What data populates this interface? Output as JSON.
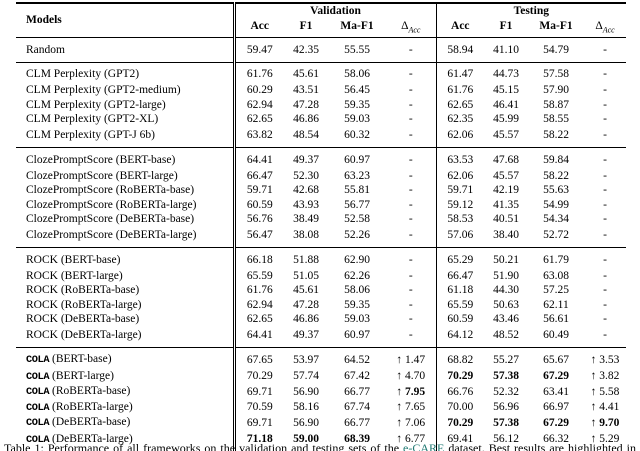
{
  "table": {
    "header": {
      "models_label": "Models",
      "validation_label": "Validation",
      "testing_label": "Testing",
      "subcols": [
        "Acc",
        "F1",
        "Ma-F1"
      ],
      "delta": {
        "sym": "Δ",
        "sub": "Acc"
      }
    },
    "groups": [
      {
        "rows": [
          {
            "tt": "",
            "name": "Random",
            "cells": [
              "59.47",
              "42.35",
              "55.55",
              "-",
              "58.94",
              "41.10",
              "54.79",
              "-"
            ],
            "bold": []
          }
        ]
      },
      {
        "rows": [
          {
            "tt": "",
            "name": "CLM Perplexity (GPT2)",
            "cells": [
              "61.76",
              "45.61",
              "58.06",
              "-",
              "61.47",
              "44.73",
              "57.58",
              "-"
            ],
            "bold": []
          },
          {
            "tt": "",
            "name": "CLM Perplexity (GPT2-medium)",
            "cells": [
              "60.29",
              "43.51",
              "56.45",
              "-",
              "61.76",
              "45.15",
              "57.90",
              "-"
            ],
            "bold": []
          },
          {
            "tt": "",
            "name": "CLM Perplexity (GPT2-large)",
            "cells": [
              "62.94",
              "47.28",
              "59.35",
              "-",
              "62.65",
              "46.41",
              "58.87",
              "-"
            ],
            "bold": []
          },
          {
            "tt": "",
            "name": "CLM Perplexity (GPT2-XL)",
            "cells": [
              "62.65",
              "46.86",
              "59.03",
              "-",
              "62.35",
              "45.99",
              "58.55",
              "-"
            ],
            "bold": []
          },
          {
            "tt": "",
            "name": "CLM Perplexity (GPT-J 6b)",
            "cells": [
              "63.82",
              "48.54",
              "60.32",
              "-",
              "62.06",
              "45.57",
              "58.22",
              "-"
            ],
            "bold": []
          }
        ]
      },
      {
        "rows": [
          {
            "tt": "",
            "name": "ClozePromptScore (BERT-base)",
            "cells": [
              "64.41",
              "49.37",
              "60.97",
              "-",
              "63.53",
              "47.68",
              "59.84",
              "-"
            ],
            "bold": []
          },
          {
            "tt": "",
            "name": "ClozePromptScore (BERT-large)",
            "cells": [
              "66.47",
              "52.30",
              "63.23",
              "-",
              "62.06",
              "45.57",
              "58.22",
              "-"
            ],
            "bold": []
          },
          {
            "tt": "",
            "name": "ClozePromptScore (RoBERTa-base)",
            "cells": [
              "59.71",
              "42.68",
              "55.81",
              "-",
              "59.71",
              "42.19",
              "55.63",
              "-"
            ],
            "bold": []
          },
          {
            "tt": "",
            "name": "ClozePromptScore (RoBERTa-large)",
            "cells": [
              "60.59",
              "43.93",
              "56.77",
              "-",
              "59.12",
              "41.35",
              "54.99",
              "-"
            ],
            "bold": []
          },
          {
            "tt": "",
            "name": "ClozePromptScore (DeBERTa-base)",
            "cells": [
              "56.76",
              "38.49",
              "52.58",
              "-",
              "58.53",
              "40.51",
              "54.34",
              "-"
            ],
            "bold": []
          },
          {
            "tt": "",
            "name": "ClozePromptScore (DeBERTa-large)",
            "cells": [
              "56.47",
              "38.08",
              "52.26",
              "-",
              "57.06",
              "38.40",
              "52.72",
              "-"
            ],
            "bold": []
          }
        ]
      },
      {
        "rows": [
          {
            "tt": "",
            "name": "ROCK (BERT-base)",
            "cells": [
              "66.18",
              "51.88",
              "62.90",
              "-",
              "65.29",
              "50.21",
              "61.79",
              "-"
            ],
            "bold": []
          },
          {
            "tt": "",
            "name": "ROCK (BERT-large)",
            "cells": [
              "65.59",
              "51.05",
              "62.26",
              "-",
              "66.47",
              "51.90",
              "63.08",
              "-"
            ],
            "bold": []
          },
          {
            "tt": "",
            "name": "ROCK (RoBERTa-base)",
            "cells": [
              "61.76",
              "45.61",
              "58.06",
              "-",
              "61.18",
              "44.30",
              "57.25",
              "-"
            ],
            "bold": []
          },
          {
            "tt": "",
            "name": "ROCK (RoBERTa-large)",
            "cells": [
              "62.94",
              "47.28",
              "59.35",
              "-",
              "65.59",
              "50.63",
              "62.11",
              "-"
            ],
            "bold": []
          },
          {
            "tt": "",
            "name": "ROCK (DeBERTa-base)",
            "cells": [
              "62.65",
              "46.86",
              "59.03",
              "-",
              "60.59",
              "43.46",
              "56.61",
              "-"
            ],
            "bold": []
          },
          {
            "tt": "",
            "name": "ROCK (DeBERTa-large)",
            "cells": [
              "64.41",
              "49.37",
              "60.97",
              "-",
              "64.12",
              "48.52",
              "60.49",
              "-"
            ],
            "bold": []
          }
        ]
      },
      {
        "rows": [
          {
            "tt": "COLA",
            "name": " (BERT-base)",
            "cells": [
              "67.65",
              "53.97",
              "64.52",
              "↑ 1.47",
              "68.82",
              "55.27",
              "65.67",
              "↑ 3.53"
            ],
            "bold": []
          },
          {
            "tt": "COLA",
            "name": " (BERT-large)",
            "cells": [
              "70.29",
              "57.74",
              "67.42",
              "↑ 4.70",
              "70.29",
              "57.38",
              "67.29",
              "↑ 3.82"
            ],
            "bold": [
              4,
              5,
              6
            ]
          },
          {
            "tt": "COLA",
            "name": " (RoBERTa-base)",
            "cells": [
              "69.71",
              "56.90",
              "66.77",
              "↑ 7.95",
              "66.76",
              "52.32",
              "63.41",
              "↑ 5.58"
            ],
            "bold": [
              3
            ]
          },
          {
            "tt": "COLA",
            "name": " (RoBERTa-large)",
            "cells": [
              "70.59",
              "58.16",
              "67.74",
              "↑ 7.65",
              "70.00",
              "56.96",
              "66.97",
              "↑ 4.41"
            ],
            "bold": []
          },
          {
            "tt": "COLA",
            "name": " (DeBERTa-base)",
            "cells": [
              "69.71",
              "56.90",
              "66.77",
              "↑ 7.06",
              "70.29",
              "57.38",
              "67.29",
              "↑ 9.70"
            ],
            "bold": [
              4,
              5,
              6,
              7
            ]
          },
          {
            "tt": "COLA",
            "name": " (DeBERTa-large)",
            "cells": [
              "71.18",
              "59.00",
              "68.39",
              "↑ 6.77",
              "69.41",
              "56.12",
              "66.32",
              "↑ 5.29"
            ],
            "bold": [
              0,
              1,
              2
            ]
          }
        ]
      }
    ]
  },
  "caption": {
    "part1": "Table 1: Performance of all frameworks on the validation and testing sets of the ",
    "link": "e-CARE",
    "link_style": "color:#1f7872",
    "part2": " dataset. Best results are highlighted in bold."
  }
}
